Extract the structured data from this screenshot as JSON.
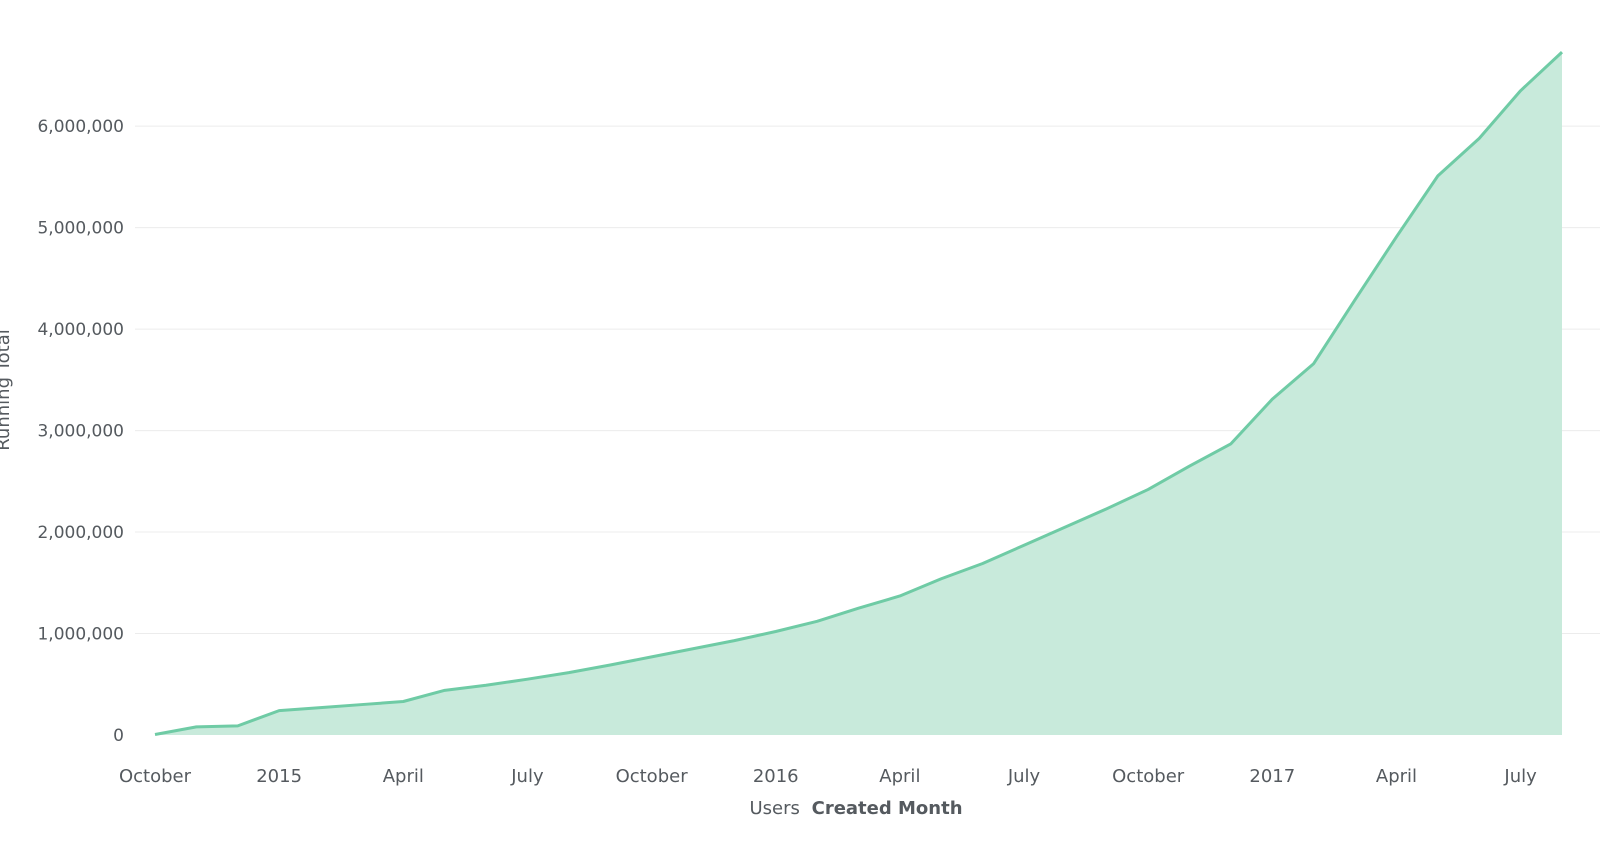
{
  "chart_data": {
    "type": "area",
    "title": "",
    "xlabel_prefix": "Users",
    "xlabel_bold": "Created Month",
    "ylabel": "Running Total",
    "ylim": [
      0,
      6800000
    ],
    "grid": true,
    "legend": "none",
    "colors": {
      "line": "#6fcba5",
      "fill": "#c8eadb",
      "grid": "#ececec",
      "text": "#555a5f"
    },
    "y_ticks": [
      {
        "value": 0,
        "label": "0"
      },
      {
        "value": 1000000,
        "label": "1,000,000"
      },
      {
        "value": 2000000,
        "label": "2,000,000"
      },
      {
        "value": 3000000,
        "label": "3,000,000"
      },
      {
        "value": 4000000,
        "label": "4,000,000"
      },
      {
        "value": 5000000,
        "label": "5,000,000"
      },
      {
        "value": 6000000,
        "label": "6,000,000"
      }
    ],
    "x_ticks": [
      {
        "x": "2014-10",
        "label": "October"
      },
      {
        "x": "2015-01",
        "label": "2015"
      },
      {
        "x": "2015-04",
        "label": "April"
      },
      {
        "x": "2015-07",
        "label": "July"
      },
      {
        "x": "2015-10",
        "label": "October"
      },
      {
        "x": "2016-01",
        "label": "2016"
      },
      {
        "x": "2016-04",
        "label": "April"
      },
      {
        "x": "2016-07",
        "label": "July"
      },
      {
        "x": "2016-10",
        "label": "October"
      },
      {
        "x": "2017-01",
        "label": "2017"
      },
      {
        "x": "2017-04",
        "label": "April"
      },
      {
        "x": "2017-07",
        "label": "July"
      }
    ],
    "series": [
      {
        "x": [
          "2014-10",
          "2014-11",
          "2014-12",
          "2015-01",
          "2015-02",
          "2015-03",
          "2015-04",
          "2015-05",
          "2015-06",
          "2015-07",
          "2015-08",
          "2015-09",
          "2015-10",
          "2015-11",
          "2015-12",
          "2016-01",
          "2016-02",
          "2016-03",
          "2016-04",
          "2016-05",
          "2016-06",
          "2016-07",
          "2016-08",
          "2016-09",
          "2016-10",
          "2016-11",
          "2016-12",
          "2017-01",
          "2017-02",
          "2017-03",
          "2017-04",
          "2017-05",
          "2017-06",
          "2017-07",
          "2017-08"
        ],
        "values": [
          5000,
          80000,
          90000,
          240000,
          270000,
          300000,
          330000,
          440000,
          490000,
          550000,
          615000,
          690000,
          770000,
          850000,
          930000,
          1020000,
          1120000,
          1250000,
          1370000,
          1540000,
          1690000,
          1870000,
          2050000,
          2230000,
          2420000,
          2650000,
          2870000,
          3310000,
          3660000,
          4290000,
          4910000,
          5510000,
          5880000,
          6350000,
          6730000
        ]
      }
    ]
  }
}
